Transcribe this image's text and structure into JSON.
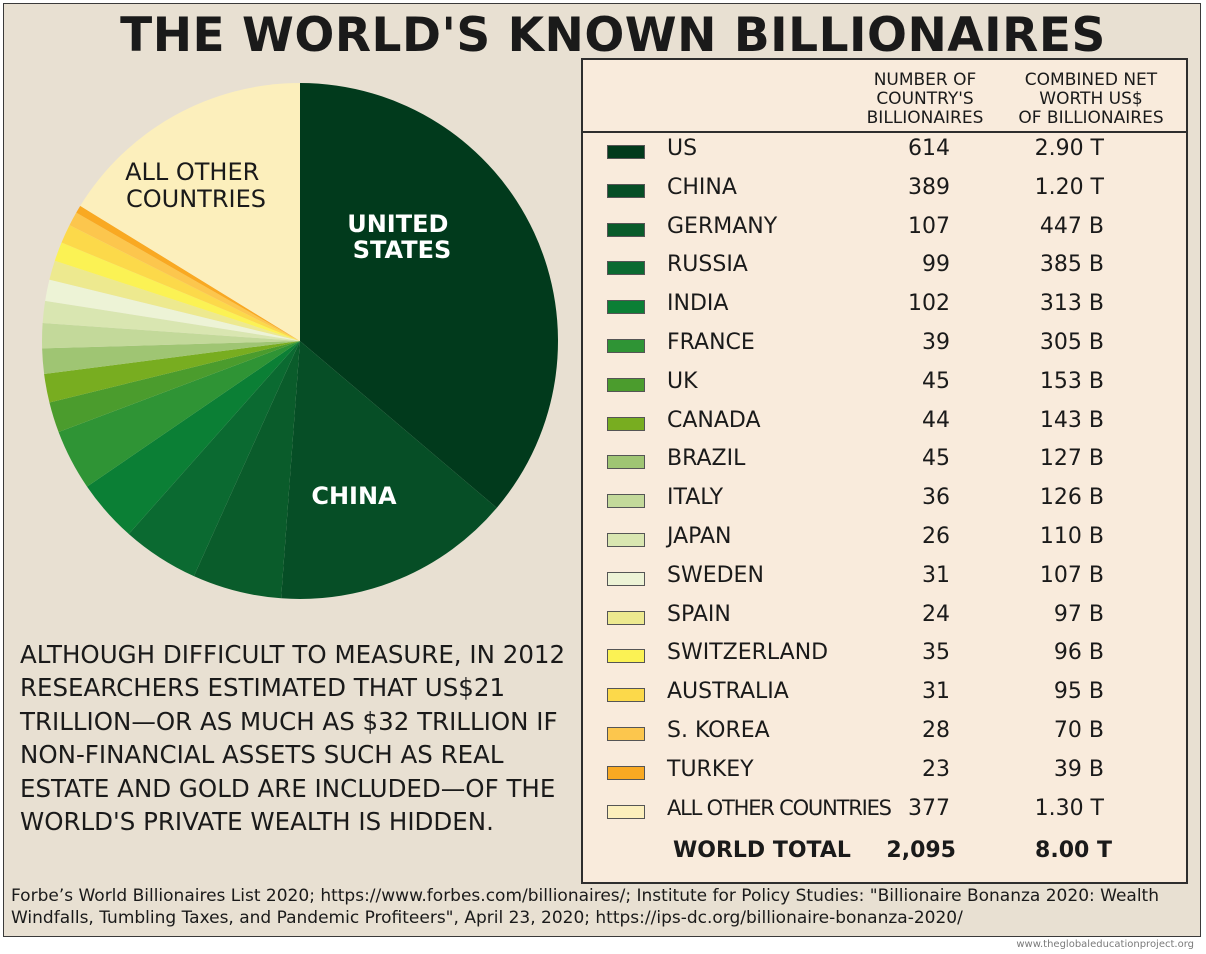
{
  "title": "THE WORLD'S KNOWN BILLIONAIRES",
  "note": "ALTHOUGH DIFFICULT TO MEASURE, IN 2012 RESEARCHERS ESTIMATED THAT US$21 TRILLION—OR AS MUCH AS $32 TRILLION IF NON-FINANCIAL ASSETS SUCH AS REAL ESTATE AND GOLD ARE INCLUDED—OF THE WORLD'S PRIVATE WEALTH IS HIDDEN.",
  "sources": "Forbe’s World Billionaires List 2020; https://www.forbes.com/billionaires/; Institute for Policy Studies: \"Billionaire Bonanza 2020: Wealth Windfalls, Tumbling Taxes, and Pandemic Profiteers\", April 23, 2020; https://ips-dc.org/billionaire-bonanza-2020/",
  "credit": "www.theglobaleducationproject.org",
  "table": {
    "header_count": [
      "NUMBER OF",
      "COUNTRY'S",
      "BILLIONAIRES"
    ],
    "header_worth": [
      "COMBINED NET",
      "WORTH US$",
      "OF BILLIONAIRES"
    ],
    "total_label": "WORLD TOTAL",
    "total_count": "2,095",
    "total_worth": "8.00 T"
  },
  "pie_labels": {
    "us": [
      "UNITED",
      "STATES"
    ],
    "china": "CHINA",
    "other": [
      "ALL OTHER",
      "COUNTRIES"
    ]
  },
  "chart_data": {
    "type": "pie",
    "title": "THE WORLD'S KNOWN BILLIONAIRES",
    "start": "12 o'clock",
    "direction": "clockwise",
    "slices": [
      {
        "label": "US",
        "billionaires": 614,
        "net_worth_usd_billions": 2900,
        "net_worth_text": "2.90 T",
        "color": "#013a1c"
      },
      {
        "label": "CHINA",
        "billionaires": 389,
        "net_worth_usd_billions": 1200,
        "net_worth_text": "1.20 T",
        "color": "#064e26"
      },
      {
        "label": "GERMANY",
        "billionaires": 107,
        "net_worth_usd_billions": 447,
        "net_worth_text": "447 B",
        "color": "#0a5c2b"
      },
      {
        "label": "RUSSIA",
        "billionaires": 99,
        "net_worth_usd_billions": 385,
        "net_worth_text": "385 B",
        "color": "#0b6a31"
      },
      {
        "label": "INDIA",
        "billionaires": 102,
        "net_worth_usd_billions": 313,
        "net_worth_text": "313 B",
        "color": "#0b7f35"
      },
      {
        "label": "FRANCE",
        "billionaires": 39,
        "net_worth_usd_billions": 305,
        "net_worth_text": "305 B",
        "color": "#2f9435"
      },
      {
        "label": "UK",
        "billionaires": 45,
        "net_worth_usd_billions": 153,
        "net_worth_text": "153 B",
        "color": "#4b9c2d"
      },
      {
        "label": "CANADA",
        "billionaires": 44,
        "net_worth_usd_billions": 143,
        "net_worth_text": "143 B",
        "color": "#78ad20"
      },
      {
        "label": "BRAZIL",
        "billionaires": 45,
        "net_worth_usd_billions": 127,
        "net_worth_text": "127 B",
        "color": "#9fc573"
      },
      {
        "label": "ITALY",
        "billionaires": 36,
        "net_worth_usd_billions": 126,
        "net_worth_text": "126 B",
        "color": "#c3d99a"
      },
      {
        "label": "JAPAN",
        "billionaires": 26,
        "net_worth_usd_billions": 110,
        "net_worth_text": "110 B",
        "color": "#d9e6b1"
      },
      {
        "label": "SWEDEN",
        "billionaires": 31,
        "net_worth_usd_billions": 107,
        "net_worth_text": "107 B",
        "color": "#edf3d6"
      },
      {
        "label": "SPAIN",
        "billionaires": 24,
        "net_worth_usd_billions": 97,
        "net_worth_text": "97 B",
        "color": "#ede98f"
      },
      {
        "label": "SWITZERLAND",
        "billionaires": 35,
        "net_worth_usd_billions": 96,
        "net_worth_text": "96 B",
        "color": "#fbf254"
      },
      {
        "label": "AUSTRALIA",
        "billionaires": 31,
        "net_worth_usd_billions": 95,
        "net_worth_text": "95 B",
        "color": "#fcd94a"
      },
      {
        "label": "S. KOREA",
        "billionaires": 28,
        "net_worth_usd_billions": 70,
        "net_worth_text": "70 B",
        "color": "#fcc64d"
      },
      {
        "label": "TURKEY",
        "billionaires": 23,
        "net_worth_usd_billions": 39,
        "net_worth_text": "39 B",
        "color": "#f9a922"
      },
      {
        "label": "ALL OTHER COUNTRIES",
        "billionaires": 377,
        "net_worth_usd_billions": 1300,
        "net_worth_text": "1.30 T",
        "color": "#fcefbc"
      }
    ],
    "total": {
      "label": "WORLD TOTAL",
      "billionaires": 2095,
      "net_worth_text": "8.00 T"
    }
  }
}
